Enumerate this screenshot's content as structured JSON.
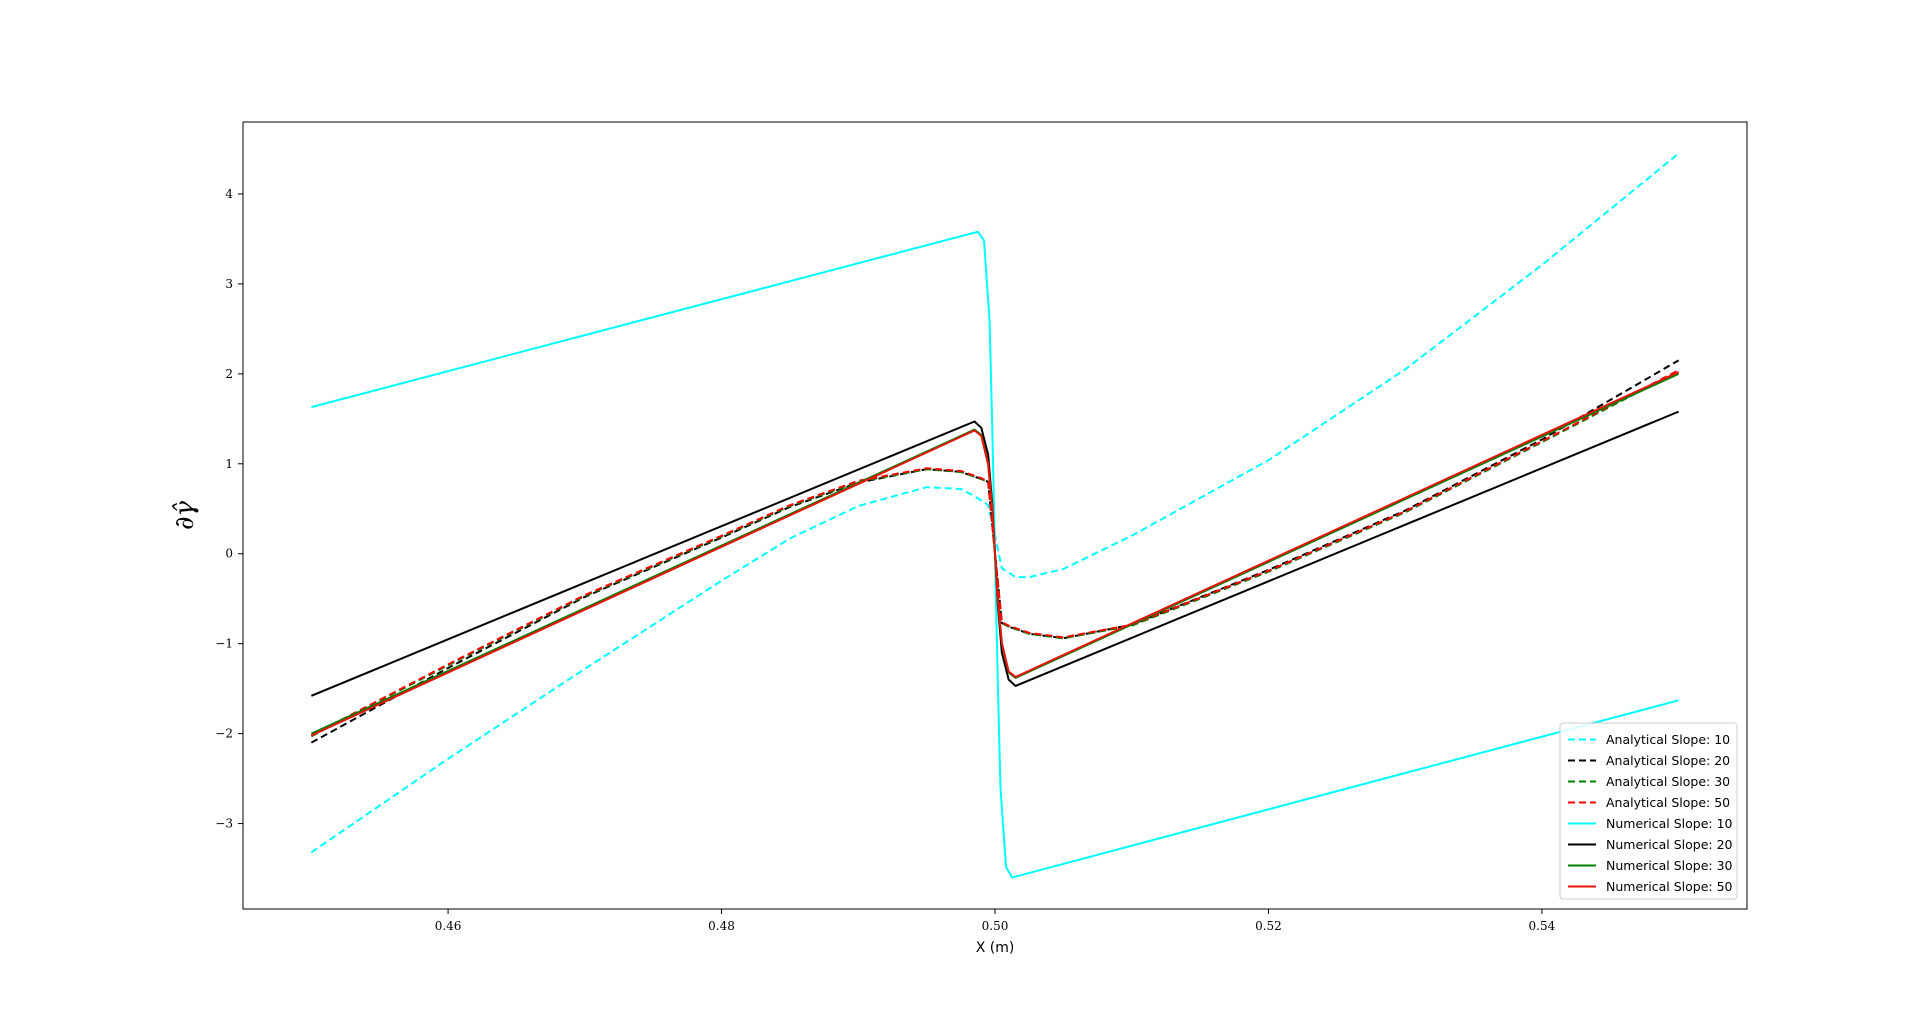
{
  "chart_data": {
    "type": "line",
    "title": "",
    "xlabel": "X (m)",
    "ylabel": "∂γ̂",
    "xlim": [
      0.445,
      0.555
    ],
    "ylim": [
      -3.95,
      4.8
    ],
    "xticks": [
      0.46,
      0.48,
      0.5,
      0.52,
      0.54
    ],
    "xtick_labels": [
      "0.46",
      "0.48",
      "0.50",
      "0.52",
      "0.54"
    ],
    "yticks": [
      -3,
      -2,
      -1,
      0,
      1,
      2,
      3,
      4
    ],
    "ytick_labels": [
      "−3",
      "−2",
      "−1",
      "0",
      "1",
      "2",
      "3",
      "4"
    ],
    "grid": false,
    "legend_position": "lower-right",
    "series": [
      {
        "name": "Analytical Slope: 10",
        "color": "#00ffff",
        "dash": "dashed",
        "x": [
          0.45,
          0.46,
          0.47,
          0.48,
          0.485,
          0.49,
          0.495,
          0.4975,
          0.4985,
          0.4995,
          0.5,
          0.5005,
          0.5015,
          0.5025,
          0.505,
          0.51,
          0.52,
          0.53,
          0.54,
          0.55
        ],
        "y": [
          -3.32,
          -2.28,
          -1.28,
          -0.3,
          0.17,
          0.53,
          0.74,
          0.72,
          0.64,
          0.54,
          0.2,
          -0.16,
          -0.26,
          -0.26,
          -0.17,
          0.2,
          1.04,
          2.05,
          3.21,
          4.45
        ]
      },
      {
        "name": "Analytical Slope: 20",
        "color": "#000000",
        "dash": "dashed",
        "x": [
          0.45,
          0.46,
          0.47,
          0.48,
          0.485,
          0.49,
          0.495,
          0.4975,
          0.499,
          0.4995,
          0.5,
          0.5005,
          0.501,
          0.5025,
          0.505,
          0.51,
          0.52,
          0.53,
          0.54,
          0.55
        ],
        "y": [
          -2.1,
          -1.27,
          -0.48,
          0.18,
          0.52,
          0.79,
          0.94,
          0.91,
          0.83,
          0.8,
          0.0,
          -0.77,
          -0.81,
          -0.89,
          -0.94,
          -0.79,
          -0.18,
          0.48,
          1.27,
          2.15
        ]
      },
      {
        "name": "Analytical Slope: 30",
        "color": "#008000",
        "dash": "dashed",
        "x": [
          0.45,
          0.46,
          0.47,
          0.48,
          0.485,
          0.49,
          0.495,
          0.4975,
          0.499,
          0.4995,
          0.5,
          0.5005,
          0.501,
          0.5025,
          0.505,
          0.51,
          0.52,
          0.53,
          0.54,
          0.55
        ],
        "y": [
          -2.03,
          -1.24,
          -0.47,
          0.19,
          0.53,
          0.8,
          0.94,
          0.91,
          0.83,
          0.8,
          0.0,
          -0.77,
          -0.81,
          -0.89,
          -0.94,
          -0.8,
          -0.2,
          0.46,
          1.24,
          2.03
        ]
      },
      {
        "name": "Analytical Slope: 50",
        "color": "#ff0000",
        "dash": "dashed",
        "x": [
          0.45,
          0.46,
          0.47,
          0.48,
          0.485,
          0.49,
          0.495,
          0.4975,
          0.499,
          0.4995,
          0.5,
          0.5005,
          0.501,
          0.5025,
          0.505,
          0.51,
          0.52,
          0.53,
          0.54,
          0.55
        ],
        "y": [
          -2.02,
          -1.23,
          -0.46,
          0.2,
          0.54,
          0.81,
          0.95,
          0.92,
          0.84,
          0.8,
          0.0,
          -0.76,
          -0.8,
          -0.88,
          -0.93,
          -0.79,
          -0.19,
          0.47,
          1.25,
          2.04
        ]
      },
      {
        "name": "Numerical Slope: 10",
        "color": "#00ffff",
        "dash": "solid",
        "x": [
          0.45,
          0.49875,
          0.4992,
          0.4996,
          0.4998,
          0.5,
          0.5002,
          0.5004,
          0.5008,
          0.50125,
          0.55
        ],
        "y": [
          1.63,
          3.58,
          3.48,
          2.6,
          1.4,
          0.0,
          -1.4,
          -2.6,
          -3.48,
          -3.6,
          -1.63
        ]
      },
      {
        "name": "Numerical Slope: 20",
        "color": "#000000",
        "dash": "solid",
        "x": [
          0.45,
          0.4985,
          0.499,
          0.4995,
          0.4998,
          0.5,
          0.5002,
          0.5005,
          0.501,
          0.5015,
          0.55
        ],
        "y": [
          -1.58,
          1.47,
          1.4,
          1.1,
          0.55,
          0.0,
          -0.55,
          -1.1,
          -1.4,
          -1.47,
          1.58
        ]
      },
      {
        "name": "Numerical Slope: 30",
        "color": "#008000",
        "dash": "solid",
        "x": [
          0.45,
          0.4985,
          0.499,
          0.4995,
          0.4998,
          0.5,
          0.5002,
          0.5005,
          0.501,
          0.5015,
          0.55
        ],
        "y": [
          -2.0,
          1.38,
          1.32,
          1.0,
          0.5,
          0.0,
          -0.5,
          -1.0,
          -1.32,
          -1.38,
          2.0
        ]
      },
      {
        "name": "Numerical Slope: 50",
        "color": "#e8140c",
        "dash": "solid",
        "x": [
          0.45,
          0.4985,
          0.499,
          0.4995,
          0.4998,
          0.5,
          0.5002,
          0.5005,
          0.501,
          0.5015,
          0.55
        ],
        "y": [
          -2.02,
          1.37,
          1.31,
          0.99,
          0.49,
          0.0,
          -0.49,
          -0.99,
          -1.31,
          -1.37,
          2.02
        ]
      }
    ]
  }
}
